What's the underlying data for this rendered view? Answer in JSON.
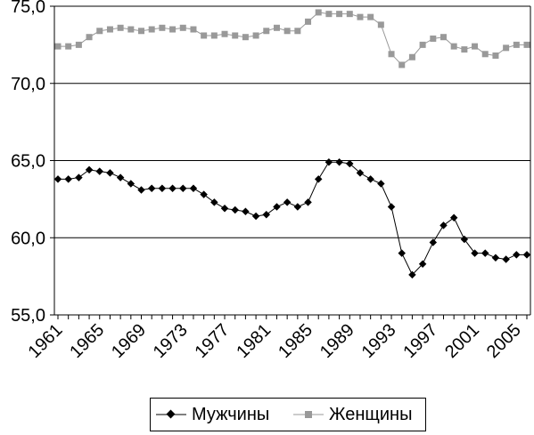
{
  "chart_data": {
    "type": "line",
    "x": [
      1961,
      1962,
      1963,
      1964,
      1965,
      1966,
      1967,
      1968,
      1969,
      1970,
      1971,
      1972,
      1973,
      1974,
      1975,
      1976,
      1977,
      1978,
      1979,
      1980,
      1981,
      1982,
      1983,
      1984,
      1985,
      1986,
      1987,
      1988,
      1989,
      1990,
      1991,
      1992,
      1993,
      1994,
      1995,
      1996,
      1997,
      1998,
      1999,
      2000,
      2001,
      2002,
      2003,
      2004,
      2005,
      2006
    ],
    "x_tick_labels": [
      "1961",
      "1965",
      "1969",
      "1973",
      "1977",
      "1981",
      "1985",
      "1989",
      "1993",
      "1997",
      "2001",
      "2005"
    ],
    "x_tick_values": [
      1961,
      1965,
      1969,
      1973,
      1977,
      1981,
      1985,
      1989,
      1993,
      1997,
      2001,
      2005
    ],
    "y_tick_labels": [
      "55,0",
      "60,0",
      "65,0",
      "70,0",
      "75,0"
    ],
    "y_tick_values": [
      55,
      60,
      65,
      70,
      75
    ],
    "ylim": [
      55,
      75
    ],
    "xlim": [
      1961,
      2006
    ],
    "grid": "horizontal",
    "legend_position": "bottom",
    "series": [
      {
        "name": "Мужчины",
        "color": "#000000",
        "marker": "diamond",
        "values": [
          63.8,
          63.8,
          63.9,
          64.4,
          64.3,
          64.2,
          63.9,
          63.5,
          63.1,
          63.2,
          63.2,
          63.2,
          63.2,
          63.2,
          62.8,
          62.3,
          61.9,
          61.8,
          61.7,
          61.4,
          61.5,
          62.0,
          62.3,
          62.0,
          62.3,
          63.8,
          64.9,
          64.9,
          64.8,
          64.2,
          63.8,
          63.5,
          62.0,
          59.0,
          57.6,
          58.3,
          59.7,
          60.8,
          61.3,
          59.9,
          59.0,
          59.0,
          58.7,
          58.6,
          58.9,
          58.9
        ]
      },
      {
        "name": "Женщины",
        "color": "#999999",
        "marker": "square",
        "values": [
          72.4,
          72.4,
          72.5,
          73.0,
          73.4,
          73.5,
          73.6,
          73.5,
          73.4,
          73.5,
          73.6,
          73.5,
          73.6,
          73.5,
          73.1,
          73.1,
          73.2,
          73.1,
          73.0,
          73.1,
          73.4,
          73.6,
          73.4,
          73.4,
          74.0,
          74.6,
          74.5,
          74.5,
          74.5,
          74.3,
          74.3,
          73.8,
          71.9,
          71.2,
          71.7,
          72.5,
          72.9,
          73.0,
          72.4,
          72.2,
          72.4,
          71.9,
          71.8,
          72.3,
          72.5,
          72.5
        ]
      }
    ]
  }
}
